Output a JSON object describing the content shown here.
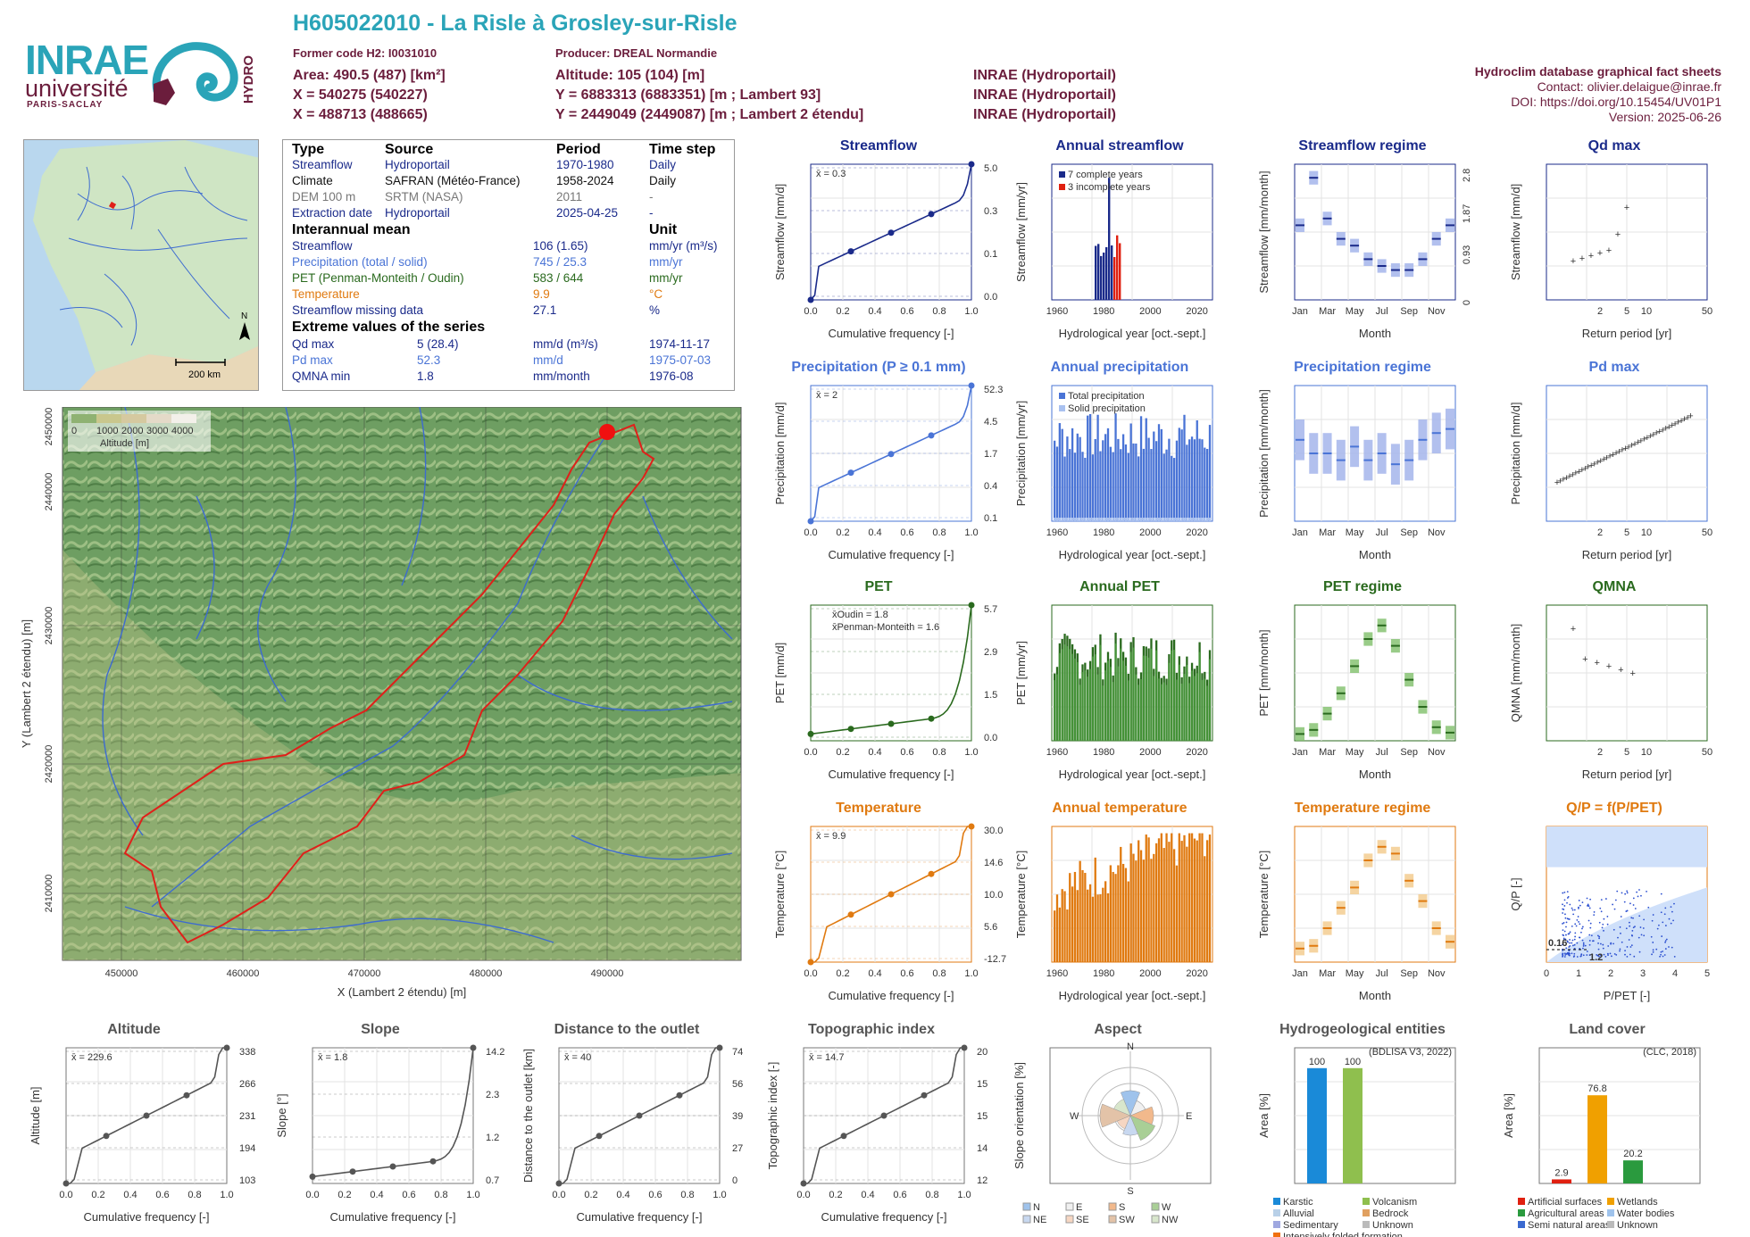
{
  "header": {
    "title": "H605022010 - La Risle à Grosley-sur-Risle",
    "former_code": "Former code H2: I0031010",
    "producer": "Producer: DREAL Normandie",
    "area": "Area: 490.5 (487) [km²]",
    "altitude": "Altitude: 105 (104) [m]",
    "x93": "X = 540275 (540227)",
    "y93": "Y = 6883313 (6883351) [m ; Lambert 93]",
    "x2": "X = 488713 (488665)",
    "y2": "Y = 2449049 (2449087) [m ; Lambert 2 étendu]",
    "src1": "INRAE (Hydroportail)",
    "src2": "INRAE (Hydroportail)",
    "src3": "INRAE (Hydroportail)",
    "db": "Hydroclim database graphical fact sheets",
    "contact": "Contact: olivier.delaigue@inrae.fr",
    "doi": "DOI: https://doi.org/10.15454/UV01P1",
    "version": "Version: 2025-06-26"
  },
  "logos": {
    "inrae": "INRAE",
    "univ": "université",
    "ps": "PARIS-SACLAY",
    "hydro": "HYDRO"
  },
  "info": {
    "h": [
      "Type",
      "Source",
      "Period",
      "Time step"
    ],
    "rows": [
      [
        "Streamflow",
        "Hydroportail",
        "1970-1980",
        "Daily"
      ],
      [
        "Climate",
        "SAFRAN (Météo-France)",
        "1958-2024",
        "Daily"
      ],
      [
        "DEM 100 m",
        "SRTM (NASA)",
        "2011",
        "-"
      ],
      [
        "Extraction date",
        "Hydroportail",
        "2025-04-25",
        "-"
      ]
    ],
    "interannual": "Interannual mean",
    "unit": "Unit",
    "im": [
      [
        "Streamflow",
        "106 (1.65)",
        "mm/yr (m³/s)"
      ],
      [
        "Precipitation (total / solid)",
        "745 / 25.3",
        "mm/yr"
      ],
      [
        "PET (Penman-Monteith / Oudin)",
        "583 / 644",
        "mm/yr"
      ],
      [
        "Temperature",
        "9.9",
        "°C"
      ],
      [
        "Streamflow missing data",
        "27.1",
        "%"
      ]
    ],
    "extreme": "Extreme values of the series",
    "ex": [
      [
        "Qd max",
        "5 (28.4)",
        "mm/d (m³/s)",
        "1974-11-17"
      ],
      [
        "Pd max",
        "52.3",
        "mm/d",
        "1975-07-03"
      ],
      [
        "QMNA min",
        "1.8",
        "mm/month",
        "1976-08"
      ]
    ]
  },
  "minimap": {
    "scale": "200 km",
    "north": "N"
  },
  "map": {
    "legend": "Altitude [m]",
    "xlabel": "X (Lambert 2 étendu) [m]",
    "ylabel": "Y (Lambert 2 étendu) [m]",
    "xt": [
      "450000",
      "460000",
      "470000",
      "480000",
      "490000"
    ],
    "yt": [
      "2410000",
      "2420000",
      "2430000",
      "2440000",
      "2450000"
    ],
    "lt": [
      "0",
      "1000",
      "2000",
      "3000",
      "4000"
    ]
  },
  "chart_data": [
    {
      "type": "line",
      "title": "Streamflow",
      "xlabel": "Cumulative frequency [-]",
      "ylabel": "Streamflow [mm/d]",
      "mean": "x̄ = 0.3",
      "labels": [
        "5.0",
        "0.3",
        "0.1",
        "0.0"
      ]
    },
    {
      "type": "bar",
      "title": "Annual streamflow",
      "xlabel": "Hydrological year [oct.-sept.]",
      "ylabel": "Streamflow [mm/yr]",
      "legend": [
        "7 complete years",
        "3 incomplete years"
      ]
    },
    {
      "type": "bar",
      "title": "Streamflow regime",
      "xlabel": "Month",
      "ylabel": "Streamflow [mm/month]",
      "y2": [
        "2.8",
        "1.87",
        "0.93",
        "0"
      ]
    },
    {
      "type": "scatter",
      "title": "Qd max",
      "xlabel": "Return period [yr]",
      "ylabel": "Streamflow [mm/d]"
    },
    {
      "type": "line",
      "title": "Precipitation (P ≥ 0.1 mm)",
      "xlabel": "Cumulative frequency [-]",
      "ylabel": "Precipitation [mm/d]",
      "mean": "x̄ = 2",
      "labels": [
        "52.3",
        "4.5",
        "1.7",
        "0.4",
        "0.1"
      ]
    },
    {
      "type": "bar",
      "title": "Annual precipitation",
      "xlabel": "Hydrological year [oct.-sept.]",
      "ylabel": "Precipitation [mm/yr]",
      "legend": [
        "Total precipitation",
        "Solid precipitation"
      ]
    },
    {
      "type": "bar",
      "title": "Precipitation regime",
      "xlabel": "Month",
      "ylabel": "Precipitation [mm/month]"
    },
    {
      "type": "scatter",
      "title": "Pd max",
      "xlabel": "Return period [yr]",
      "ylabel": "Precipitation [mm/d]"
    },
    {
      "type": "line",
      "title": "PET",
      "xlabel": "Cumulative frequency [-]",
      "ylabel": "PET [mm/d]",
      "mean1": "x̄Oudin = 1.8",
      "mean2": "x̄Penman-Monteith = 1.6",
      "labels": [
        "5.7",
        "2.9",
        "1.5",
        "0.0"
      ]
    },
    {
      "type": "bar",
      "title": "Annual PET",
      "xlabel": "Hydrological year [oct.-sept.]",
      "ylabel": "PET [mm/yr]"
    },
    {
      "type": "bar",
      "title": "PET regime",
      "xlabel": "Month",
      "ylabel": "PET [mm/month]"
    },
    {
      "type": "scatter",
      "title": "QMNA",
      "xlabel": "Return period [yr]",
      "ylabel": "QMNA [mm/month]"
    },
    {
      "type": "line",
      "title": "Temperature",
      "xlabel": "Cumulative frequency [-]",
      "ylabel": "Temperature [°C]",
      "mean": "x̄ = 9.9",
      "labels": [
        "30.0",
        "14.6",
        "10.0",
        "5.6",
        "-12.7"
      ]
    },
    {
      "type": "bar",
      "title": "Annual temperature",
      "xlabel": "Hydrological year [oct.-sept.]",
      "ylabel": "Temperature [°C]"
    },
    {
      "type": "bar",
      "title": "Temperature regime",
      "xlabel": "Month",
      "ylabel": "Temperature [°C]"
    },
    {
      "type": "scatter",
      "title": "Q/P = f(P/PET)",
      "xlabel": "P/PET [-]",
      "ylabel": "Q/P [-]",
      "a1": "0.16",
      "a2": "1.2"
    },
    {
      "type": "line",
      "title": "Altitude",
      "xlabel": "Cumulative frequency [-]",
      "ylabel": "Altitude [m]",
      "mean": "x̄ = 229.6",
      "labels": [
        "338",
        "266",
        "231",
        "194",
        "103"
      ]
    },
    {
      "type": "line",
      "title": "Slope",
      "xlabel": "Cumulative frequency [-]",
      "ylabel": "Slope [°]",
      "mean": "x̄ = 1.8",
      "labels": [
        "14.2",
        "2.3",
        "1.2",
        "0.7"
      ]
    },
    {
      "type": "line",
      "title": "Distance to the outlet",
      "xlabel": "Cumulative frequency [-]",
      "ylabel": "Distance to the outlet [km]",
      "mean": "x̄ = 40",
      "labels": [
        "74",
        "56",
        "39",
        "27",
        "0"
      ]
    },
    {
      "type": "line",
      "title": "Topographic index",
      "xlabel": "Cumulative frequency [-]",
      "ylabel": "Topographic index [-]",
      "mean": "x̄ = 14.7",
      "labels": [
        "20",
        "15",
        "15",
        "14",
        "12"
      ]
    },
    {
      "type": "pie",
      "title": "Aspect",
      "ylabel": "Slope orientation [%]",
      "legend": [
        "N",
        "E",
        "S",
        "W",
        "NE",
        "SE",
        "SW",
        "NW"
      ]
    },
    {
      "type": "bar",
      "title": "Hydrogeological entities",
      "ylabel": "Area [%]",
      "values": [
        "100",
        "100"
      ],
      "src": "(BDLISA V3, 2022)",
      "legend": [
        "Karstic",
        "Volcanism",
        "Alluvial",
        "Bedrock",
        "Sedimentary",
        "Unknown",
        "Intensively folded formation"
      ]
    },
    {
      "type": "bar",
      "title": "Land cover",
      "ylabel": "Area [%]",
      "values": [
        "2.9",
        "76.8",
        "20.2"
      ],
      "src": "(CLC, 2018)",
      "legend": [
        "Artificial surfaces",
        "Wetlands",
        "Agricultural areas",
        "Water bodies",
        "Semi natural areas",
        "Unknown"
      ]
    }
  ],
  "colors": {
    "stream": "#1a2a8a",
    "prec": "#4a74d6",
    "pet": "#2a6a1e",
    "temp": "#e07a10",
    "grey": "#555555"
  }
}
